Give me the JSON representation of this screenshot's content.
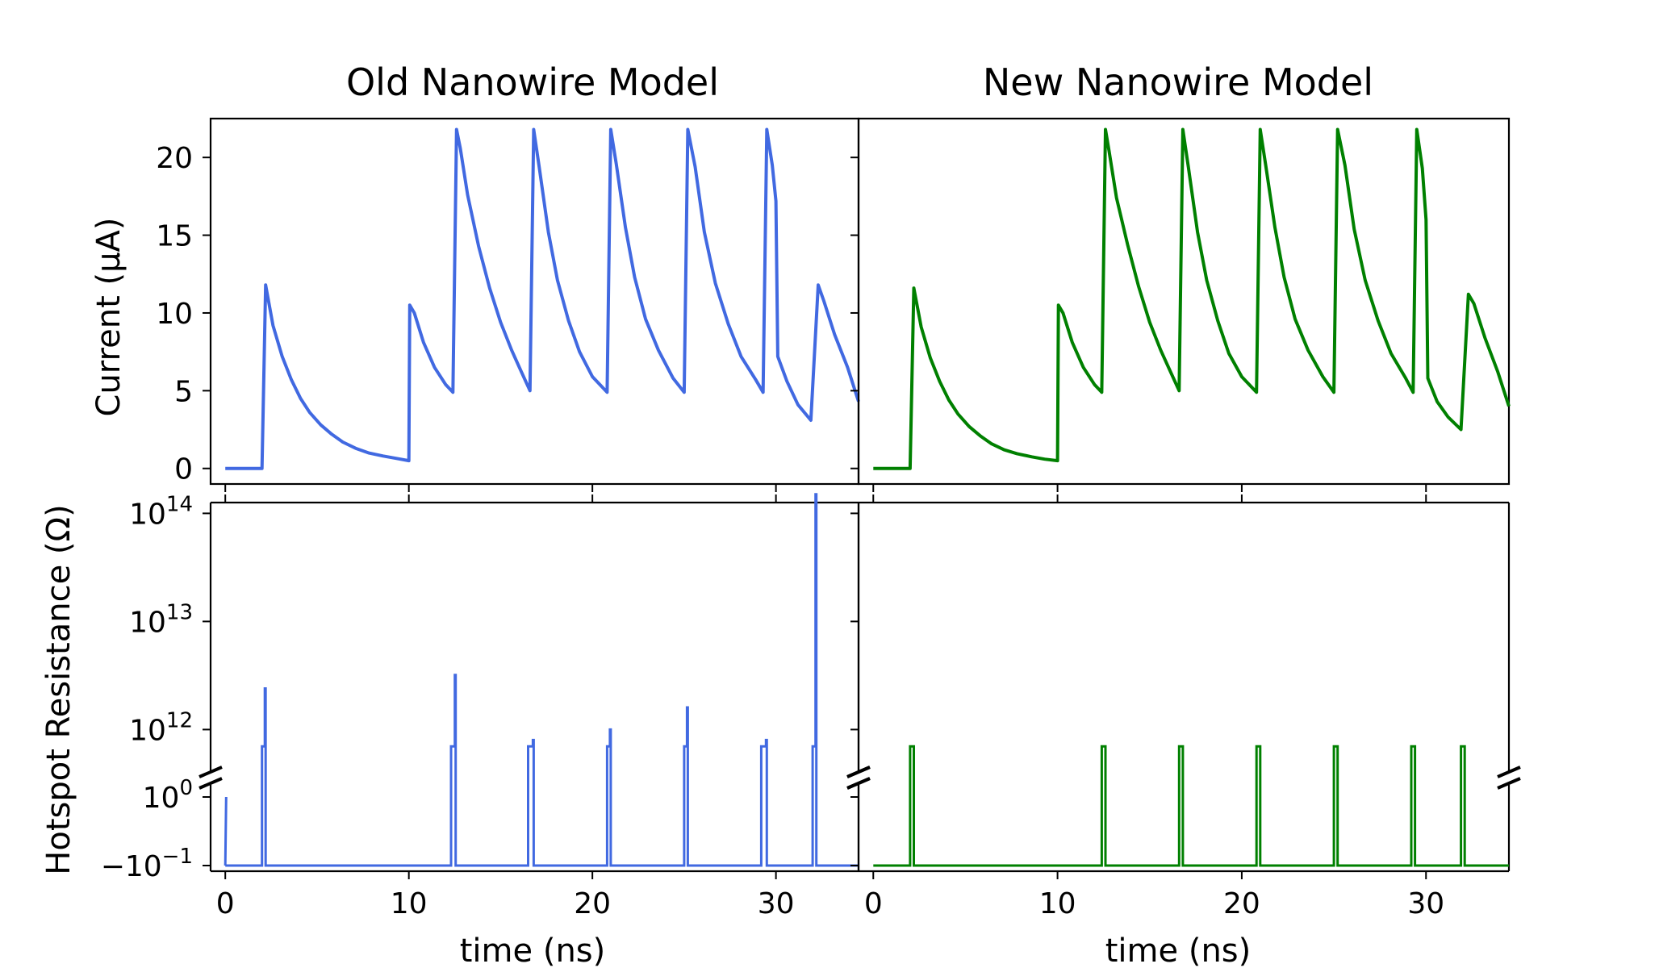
{
  "colors": {
    "old": "#4169e1",
    "new": "#008000",
    "axis": "#000000",
    "background": "#ffffff"
  },
  "chart_data": [
    {
      "type": "line",
      "panel": "top-left",
      "title": "Old Nanowire Model",
      "xlabel": "",
      "ylabel": "Current (μA)",
      "xlim": [
        -0.8,
        34.5
      ],
      "ylim": [
        -1,
        22.5
      ],
      "yticks": [
        0,
        5,
        10,
        15,
        20
      ],
      "ytick_labels": [
        "0",
        "5",
        "10",
        "15",
        "20"
      ],
      "series": [
        {
          "color": "#4169e1",
          "x": [
            0,
            2.0,
            2.2,
            2.6,
            3.1,
            3.6,
            4.1,
            4.6,
            5.2,
            5.8,
            6.4,
            7.1,
            7.8,
            8.6,
            9.3,
            10.0,
            10.05,
            10.3,
            10.8,
            11.4,
            12.0,
            12.4,
            12.6,
            12.8,
            13.2,
            13.8,
            14.4,
            15.0,
            15.6,
            16.1,
            16.6,
            16.8,
            17.1,
            17.6,
            18.1,
            18.7,
            19.3,
            20.0,
            20.8,
            21.0,
            21.3,
            21.8,
            22.3,
            22.9,
            23.6,
            24.4,
            25.0,
            25.2,
            25.6,
            26.1,
            26.7,
            27.4,
            28.1,
            28.9,
            29.3,
            29.5,
            29.8,
            30.0,
            30.1,
            30.6,
            31.2,
            31.9,
            32.3,
            32.6,
            33.2,
            33.9,
            34.5
          ],
          "y": [
            0,
            0,
            11.8,
            9.2,
            7.2,
            5.7,
            4.5,
            3.6,
            2.8,
            2.2,
            1.7,
            1.3,
            1.0,
            0.8,
            0.65,
            0.5,
            10.5,
            10.0,
            8.1,
            6.5,
            5.4,
            4.9,
            21.8,
            20.6,
            17.6,
            14.3,
            11.6,
            9.4,
            7.6,
            6.3,
            5.0,
            21.8,
            19.4,
            15.2,
            12.1,
            9.5,
            7.5,
            5.9,
            4.9,
            21.8,
            19.6,
            15.5,
            12.3,
            9.6,
            7.6,
            5.8,
            4.9,
            21.8,
            19.4,
            15.2,
            11.9,
            9.3,
            7.2,
            5.7,
            4.9,
            21.8,
            19.5,
            17.2,
            7.2,
            5.6,
            4.1,
            3.1,
            11.8,
            10.8,
            8.6,
            6.5,
            4.3
          ]
        }
      ]
    },
    {
      "type": "line",
      "panel": "top-right",
      "title": "New Nanowire Model",
      "xlabel": "",
      "ylabel": "",
      "xlim": [
        -0.8,
        34.5
      ],
      "ylim": [
        -1,
        22.5
      ],
      "series": [
        {
          "color": "#008000",
          "x": [
            0,
            2.0,
            2.2,
            2.6,
            3.1,
            3.6,
            4.1,
            4.6,
            5.2,
            5.8,
            6.4,
            7.1,
            7.8,
            8.6,
            9.3,
            10.0,
            10.05,
            10.3,
            10.8,
            11.4,
            12.0,
            12.4,
            12.6,
            12.8,
            13.2,
            13.8,
            14.4,
            15.0,
            15.6,
            16.1,
            16.6,
            16.8,
            17.1,
            17.6,
            18.1,
            18.7,
            19.3,
            20.0,
            20.8,
            21.0,
            21.3,
            21.8,
            22.3,
            22.9,
            23.6,
            24.4,
            25.0,
            25.2,
            25.6,
            26.1,
            26.7,
            27.4,
            28.1,
            28.9,
            29.3,
            29.5,
            29.8,
            30.0,
            30.1,
            30.6,
            31.2,
            31.9,
            32.3,
            32.6,
            33.2,
            33.9,
            34.5
          ],
          "y": [
            0,
            0,
            11.6,
            9.1,
            7.1,
            5.6,
            4.4,
            3.5,
            2.7,
            2.1,
            1.6,
            1.2,
            0.95,
            0.75,
            0.6,
            0.5,
            10.5,
            10.0,
            8.1,
            6.5,
            5.4,
            4.9,
            21.8,
            20.4,
            17.4,
            14.4,
            11.7,
            9.4,
            7.6,
            6.3,
            5.0,
            21.8,
            19.4,
            15.2,
            12.1,
            9.5,
            7.4,
            5.9,
            4.9,
            21.8,
            19.5,
            15.5,
            12.3,
            9.6,
            7.6,
            5.9,
            4.9,
            21.8,
            19.5,
            15.4,
            12.1,
            9.5,
            7.4,
            5.8,
            4.9,
            21.8,
            19.3,
            16.0,
            5.8,
            4.3,
            3.3,
            2.5,
            11.2,
            10.6,
            8.4,
            6.2,
            4.0
          ]
        }
      ]
    },
    {
      "type": "line",
      "panel": "bottom-left",
      "xlabel": "time (ns)",
      "ylabel": "Hotspot Resistance (Ω)",
      "xlim": [
        -0.8,
        34.5
      ],
      "yscale": "broken-log",
      "upper_ylim_exp": [
        11.6,
        14.1
      ],
      "lower_ylim": [
        -0.1,
        1
      ],
      "xticks": [
        0,
        10,
        20,
        30
      ],
      "xtick_labels": [
        "0",
        "10",
        "20",
        "30"
      ],
      "ytick_labels": [
        {
          "base": "10",
          "sup": "14",
          "value": 100000000000000.0
        },
        {
          "base": "10",
          "sup": "13",
          "value": 10000000000000.0
        },
        {
          "base": "10",
          "sup": "12",
          "value": 1000000000000.0
        },
        {
          "base": "10",
          "sup": "0",
          "value": 1
        },
        {
          "base": "−10",
          "sup": "−1",
          "value": -0.1
        }
      ],
      "resting_value": -0.1,
      "pulses": [
        {
          "x": 2.0,
          "width": 0.2,
          "plateau": 700000000000.0,
          "peak": 2400000000000.0
        },
        {
          "x": 12.3,
          "width": 0.25,
          "plateau": 700000000000.0,
          "peak": 3200000000000.0
        },
        {
          "x": 16.5,
          "width": 0.3,
          "plateau": 700000000000.0,
          "peak": 800000000000.0
        },
        {
          "x": 20.8,
          "width": 0.2,
          "plateau": 700000000000.0,
          "peak": 1000000000000.0
        },
        {
          "x": 25.0,
          "width": 0.2,
          "plateau": 700000000000.0,
          "peak": 1600000000000.0
        },
        {
          "x": 29.2,
          "width": 0.3,
          "plateau": 700000000000.0,
          "peak": 800000000000.0
        },
        {
          "x": 32.0,
          "width": 0.2,
          "plateau": 700000000000.0,
          "peak": 150000000000000.0
        }
      ]
    },
    {
      "type": "line",
      "panel": "bottom-right",
      "xlabel": "time (ns)",
      "ylabel": "",
      "xlim": [
        -0.8,
        34.5
      ],
      "yscale": "broken-log",
      "xticks": [
        0,
        10,
        20,
        30
      ],
      "xtick_labels": [
        "0",
        "10",
        "20",
        "30"
      ],
      "resting_value": -0.1,
      "pulses": [
        {
          "x": 2.0,
          "width": 0.2,
          "plateau": 700000000000.0
        },
        {
          "x": 12.4,
          "width": 0.2,
          "plateau": 700000000000.0
        },
        {
          "x": 16.6,
          "width": 0.2,
          "plateau": 700000000000.0
        },
        {
          "x": 20.8,
          "width": 0.2,
          "plateau": 700000000000.0
        },
        {
          "x": 25.0,
          "width": 0.2,
          "plateau": 700000000000.0
        },
        {
          "x": 29.2,
          "width": 0.2,
          "plateau": 700000000000.0
        },
        {
          "x": 31.9,
          "width": 0.2,
          "plateau": 700000000000.0
        }
      ]
    }
  ]
}
